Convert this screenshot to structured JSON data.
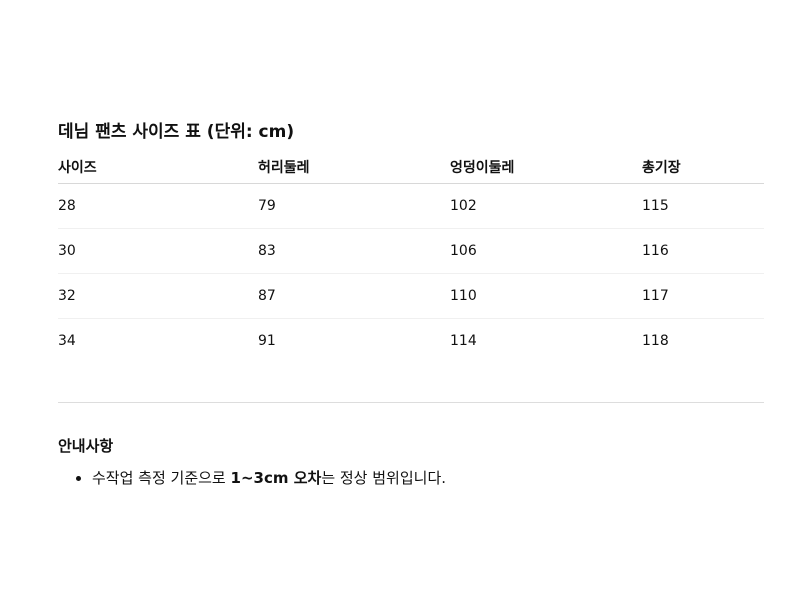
{
  "title": "데님 팬츠 사이즈 표 (단위: cm)",
  "table": {
    "headers": [
      "사이즈",
      "허리둘레",
      "엉덩이둘레",
      "총기장"
    ],
    "rows": [
      [
        "28",
        "79",
        "102",
        "115"
      ],
      [
        "30",
        "83",
        "106",
        "116"
      ],
      [
        "32",
        "87",
        "110",
        "117"
      ],
      [
        "34",
        "91",
        "114",
        "118"
      ]
    ]
  },
  "notes": {
    "heading": "안내사항",
    "items": [
      {
        "before": "수작업 측정 기준으로 ",
        "bold": "1~3cm 오차",
        "after": "는 정상 범위입니다."
      }
    ]
  }
}
